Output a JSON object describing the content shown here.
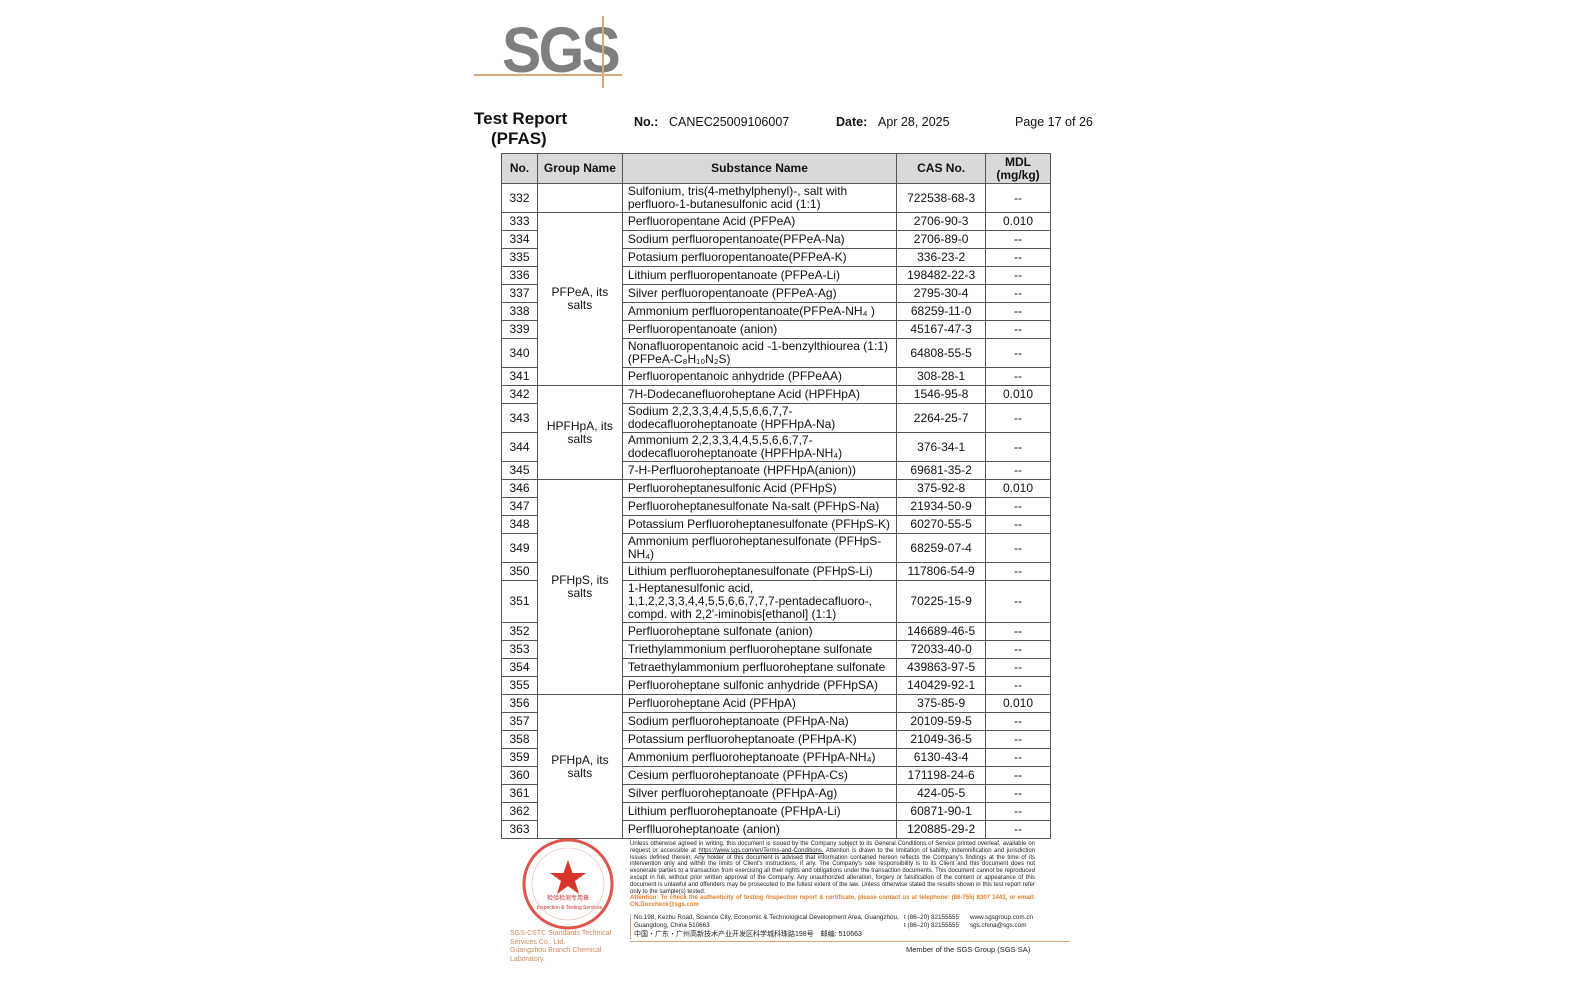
{
  "logo": {
    "text": "SGS",
    "brand_color": "#7f7f7f",
    "accent_color": "#d9a877"
  },
  "header": {
    "title_line1": "Test Report",
    "title_line2": "(PFAS)",
    "no_label": "No.:",
    "no_value": "CANEC25009106007",
    "date_label": "Date:",
    "date_value": "Apr 28, 2025",
    "page": "Page 17 of 26"
  },
  "table": {
    "columns": [
      "No.",
      "Group Name",
      "Substance Name",
      "CAS No.",
      "MDL\n(mg/kg)"
    ],
    "groups": [
      {
        "name": "",
        "rows": [
          {
            "no": "332",
            "substance": "Sulfonium, tris(4-methylphenyl)-, salt with perfluoro-1-butanesulfonic acid (1:1)",
            "cas": "722538-68-3",
            "mdl": "--"
          }
        ]
      },
      {
        "name": "PFPeA, its salts",
        "rows": [
          {
            "no": "333",
            "substance": "Perfluoropentane Acid (PFPeA)",
            "cas": "2706-90-3",
            "mdl": "0.010"
          },
          {
            "no": "334",
            "substance": "Sodium perfluoropentanoate(PFPeA-Na)",
            "cas": "2706-89-0",
            "mdl": "--"
          },
          {
            "no": "335",
            "substance": "Potasium perfluoropentanoate(PFPeA-K)",
            "cas": "336-23-2",
            "mdl": "--"
          },
          {
            "no": "336",
            "substance": "Lithium perfluoropentanoate (PFPeA-Li)",
            "cas": "198482-22-3",
            "mdl": "--"
          },
          {
            "no": "337",
            "substance": "Silver perfluoropentanoate (PFPeA-Ag)",
            "cas": "2795-30-4",
            "mdl": "--"
          },
          {
            "no": "338",
            "substance": "Ammonium perfluoropentanoate(PFPeA-NH₄ )",
            "cas": "68259-11-0",
            "mdl": "--"
          },
          {
            "no": "339",
            "substance": "Perfluoropentanoate (anion)",
            "cas": "45167-47-3",
            "mdl": "--"
          },
          {
            "no": "340",
            "substance": "Nonafluoropentanoic acid -1-benzylthiourea (1:1) (PFPeA-C₈H₁₀N₂S)",
            "cas": "64808-55-5",
            "mdl": "--"
          },
          {
            "no": "341",
            "substance": "Perfluoropentanoic anhydride (PFPeAA)",
            "cas": "308-28-1",
            "mdl": "--"
          }
        ]
      },
      {
        "name": "HPFHpA, its salts",
        "rows": [
          {
            "no": "342",
            "substance": "7H-Dodecanefluoroheptane Acid (HPFHpA)",
            "cas": "1546-95-8",
            "mdl": "0.010"
          },
          {
            "no": "343",
            "substance": "Sodium 2,2,3,3,4,4,5,5,6,6,7,7- dodecafluoroheptanoate (HPFHpA-Na)",
            "cas": "2264-25-7",
            "mdl": "--"
          },
          {
            "no": "344",
            "substance": "Ammonium 2,2,3,3,4,4,5,5,6,6,7,7- dodecafluoroheptanoate (HPFHpA-NH₄)",
            "cas": "376-34-1",
            "mdl": "--"
          },
          {
            "no": "345",
            "substance": "7-H-Perfluoroheptanoate (HPFHpA(anion))",
            "cas": "69681-35-2",
            "mdl": "--"
          }
        ]
      },
      {
        "name": "PFHpS, its salts",
        "rows": [
          {
            "no": "346",
            "substance": "Perfluoroheptanesulfonic Acid (PFHpS)",
            "cas": "375-92-8",
            "mdl": "0.010"
          },
          {
            "no": "347",
            "substance": "Perfluoroheptanesulfonate Na-salt (PFHpS-Na)",
            "cas": "21934-50-9",
            "mdl": "--"
          },
          {
            "no": "348",
            "substance": "Potassium Perfluoroheptanesulfonate (PFHpS-K)",
            "cas": "60270-55-5",
            "mdl": "--"
          },
          {
            "no": "349",
            "substance": "Ammonium perfluoroheptanesulfonate (PFHpS- NH₄)",
            "cas": "68259-07-4",
            "mdl": "--"
          },
          {
            "no": "350",
            "substance": "Lithium perfluoroheptanesulfonate (PFHpS-Li)",
            "cas": "117806-54-9",
            "mdl": "--"
          },
          {
            "no": "351",
            "substance": "1-Heptanesulfonic acid, 1,1,2,2,3,3,4,4,5,5,6,6,7,7,7-pentadecafluoro-, compd. with 2,2'-iminobis[ethanol] (1:1)",
            "cas": "70225-15-9",
            "mdl": "--"
          },
          {
            "no": "352",
            "substance": "Perfluoroheptane sulfonate (anion)",
            "cas": "146689-46-5",
            "mdl": "--"
          },
          {
            "no": "353",
            "substance": "Triethylammonium perfluoroheptane sulfonate",
            "cas": "72033-40-0",
            "mdl": "--"
          },
          {
            "no": "354",
            "substance": "Tetraethylammonium perfluoroheptane sulfonate",
            "cas": "439863-97-5",
            "mdl": "--"
          },
          {
            "no": "355",
            "substance": "Perfluoroheptane sulfonic anhydride (PFHpSA)",
            "cas": "140429-92-1",
            "mdl": "--"
          }
        ]
      },
      {
        "name": "PFHpA, its salts",
        "rows": [
          {
            "no": "356",
            "substance": "Perfluoroheptane Acid (PFHpA)",
            "cas": "375-85-9",
            "mdl": "0.010"
          },
          {
            "no": "357",
            "substance": "Sodium perfluoroheptanoate (PFHpA-Na)",
            "cas": "20109-59-5",
            "mdl": "--"
          },
          {
            "no": "358",
            "substance": "Potassium perfluoroheptanoate (PFHpA-K)",
            "cas": "21049-36-5",
            "mdl": "--"
          },
          {
            "no": "359",
            "substance": "Ammonium perfluoroheptanoate (PFHpA-NH₄)",
            "cas": "6130-43-4",
            "mdl": "--"
          },
          {
            "no": "360",
            "substance": "Cesium perfluoroheptanoate (PFHpA-Cs)",
            "cas": "171198-24-6",
            "mdl": "--"
          },
          {
            "no": "361",
            "substance": "Silver perfluoroheptanoate (PFHpA-Ag)",
            "cas": "424-05-5",
            "mdl": "--"
          },
          {
            "no": "362",
            "substance": "Lithium perfluoroheptanoate (PFHpA-Li)",
            "cas": "60871-90-1",
            "mdl": "--"
          },
          {
            "no": "363",
            "substance": "Perflluoroheptanoate (anion)",
            "cas": "120885-29-2",
            "mdl": "--"
          }
        ]
      }
    ]
  },
  "footer": {
    "stamp": {
      "inner_text": "检验检测专用章",
      "inner_text_en": "Inspection & Testing Services",
      "color": "#d9362b"
    },
    "company_line1": "SGS-CSTC Standards Technical Services Co., Ltd.",
    "company_line2": "Guangzhou Branch Chemical Laboratory.",
    "legal_text_1": "Unless otherwise agreed in writing, this document is issued by the Company subject to its General Conditions of Service printed overleaf, available on request or accessible at ",
    "legal_link": "https://www.sgs.com/en/Terms-and-Conditions.",
    "legal_text_2": " Attention is drawn to the limitation of liability, indemnification and jurisdiction issues defined therein. Any holder of this document is advised that information contained hereon reflects the Company's findings at the time of its intervention only and within the limits of Client's instructions, if any. The Company's sole responsibility is to its Client and this document does not exonerate parties to a transaction from exercising all their rights and obligations under the transaction documents. This document cannot be reproduced except in full, without prior written approval of the Company. Any unauthorized alteration, forgery or falsification of the content or appearance of this document is unlawful and offenders may be prosecuted to the fullest extent of the law. Unless otherwise stated the results shown in this test report refer only to the sample(s) tested.",
    "attention": "Attention: To check the authenticity of testing /inspection report & certificate, please contact us at telephone: (86-755) 8307 1443, or email: CN.Doccheck@sgs.com",
    "address_en": "No.198, Kezhu Road, Science City, Economic & Technological Development Area, Guangzhou, Guangdong, China 510663",
    "address_cn": "中国・广东・广州高新技术产业开发区科学城科珠路198号　邮编: 510663",
    "phone1": "t (86–20) 82155555",
    "phone2": "t (86–20) 82155555",
    "web": "www.sgsgroup.com.cn",
    "email": "sgs.china@sgs.com",
    "member": "Member of the SGS Group (SGS SA)"
  }
}
